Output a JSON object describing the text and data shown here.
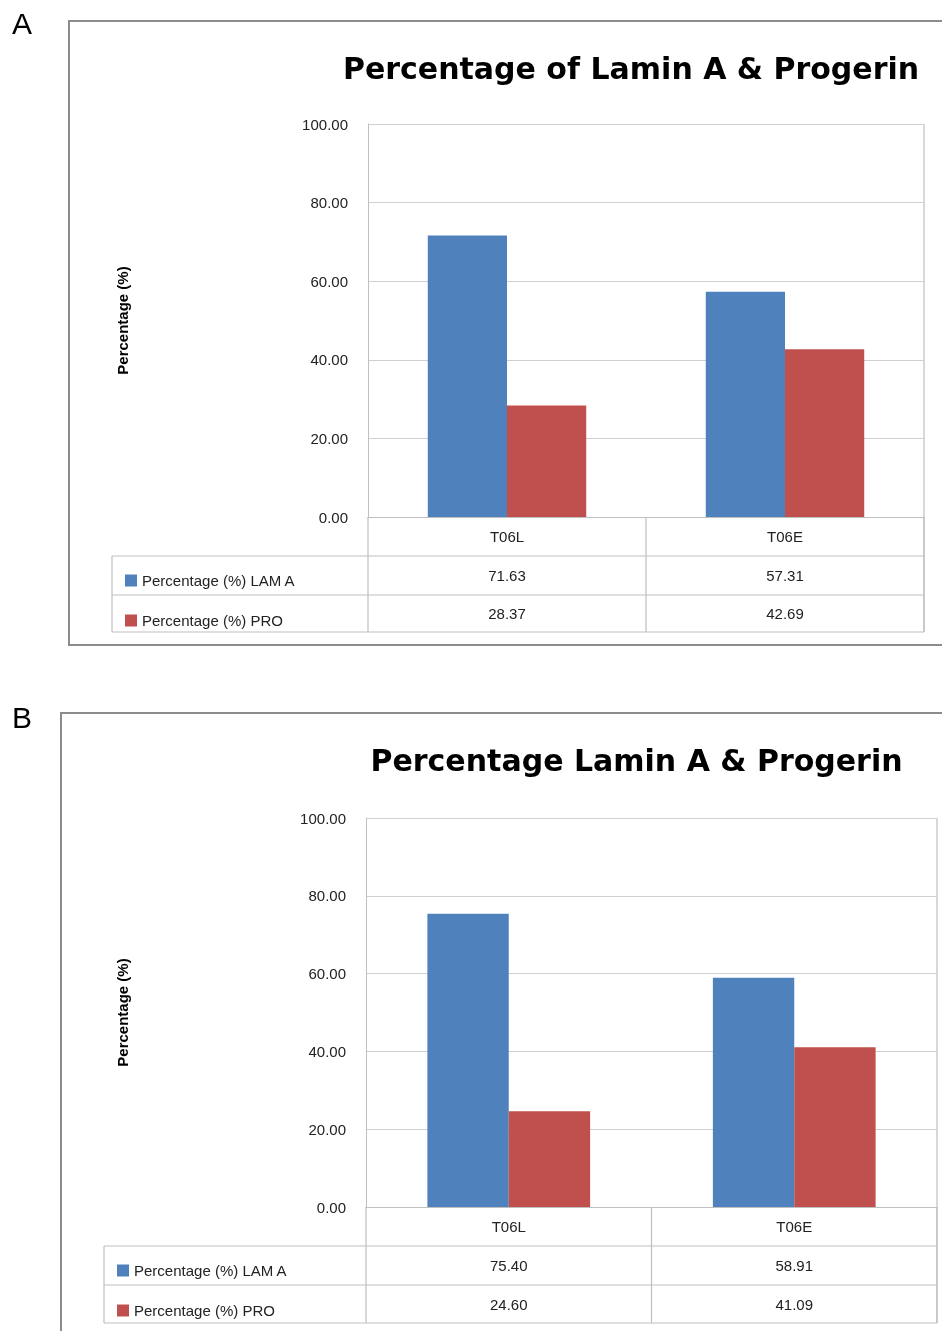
{
  "chart_data": [
    {
      "type": "bar",
      "title": "Percentage of Lamin A & Progerin",
      "ylabel": "Percentage (%)",
      "annotations": [
        "A"
      ],
      "categories": [
        "T06L",
        "T06E"
      ],
      "series": [
        {
          "name": "Percentage (%) LAM A",
          "color": "#4f81bd",
          "values": [
            71.63,
            57.31
          ],
          "value_labels": [
            "71.63",
            "57.31"
          ]
        },
        {
          "name": "Percentage (%) PRO",
          "color": "#c0504d",
          "values": [
            28.37,
            42.69
          ],
          "value_labels": [
            "28.37",
            "42.69"
          ]
        }
      ],
      "ylim": [
        0,
        100
      ],
      "yticks": [
        {
          "value": 0,
          "label": "0.00"
        },
        {
          "value": 20,
          "label": "20.00"
        },
        {
          "value": 40,
          "label": "40.00"
        },
        {
          "value": 60,
          "label": "60.00"
        },
        {
          "value": 80,
          "label": "80.00"
        },
        {
          "value": 100,
          "label": "100.00"
        }
      ],
      "grid": "y",
      "legend": "bottom"
    },
    {
      "type": "bar",
      "title": "Percentage Lamin A & Progerin",
      "ylabel": "Percentage (%)",
      "annotations": [
        "B"
      ],
      "categories": [
        "T06L",
        "T06E"
      ],
      "series": [
        {
          "name": "Percentage (%) LAM A",
          "color": "#4f81bd",
          "values": [
            75.4,
            58.91
          ],
          "value_labels": [
            "75.40",
            "58.91"
          ]
        },
        {
          "name": "Percentage (%) PRO",
          "color": "#c0504d",
          "values": [
            24.6,
            41.09
          ],
          "value_labels": [
            "24.60",
            "41.09"
          ]
        }
      ],
      "ylim": [
        0,
        100
      ],
      "yticks": [
        {
          "value": 0,
          "label": "0.00"
        },
        {
          "value": 20,
          "label": "20.00"
        },
        {
          "value": 40,
          "label": "40.00"
        },
        {
          "value": 60,
          "label": "60.00"
        },
        {
          "value": 80,
          "label": "80.00"
        },
        {
          "value": 100,
          "label": "100.00"
        }
      ],
      "grid": "y",
      "legend": "bottom"
    }
  ]
}
